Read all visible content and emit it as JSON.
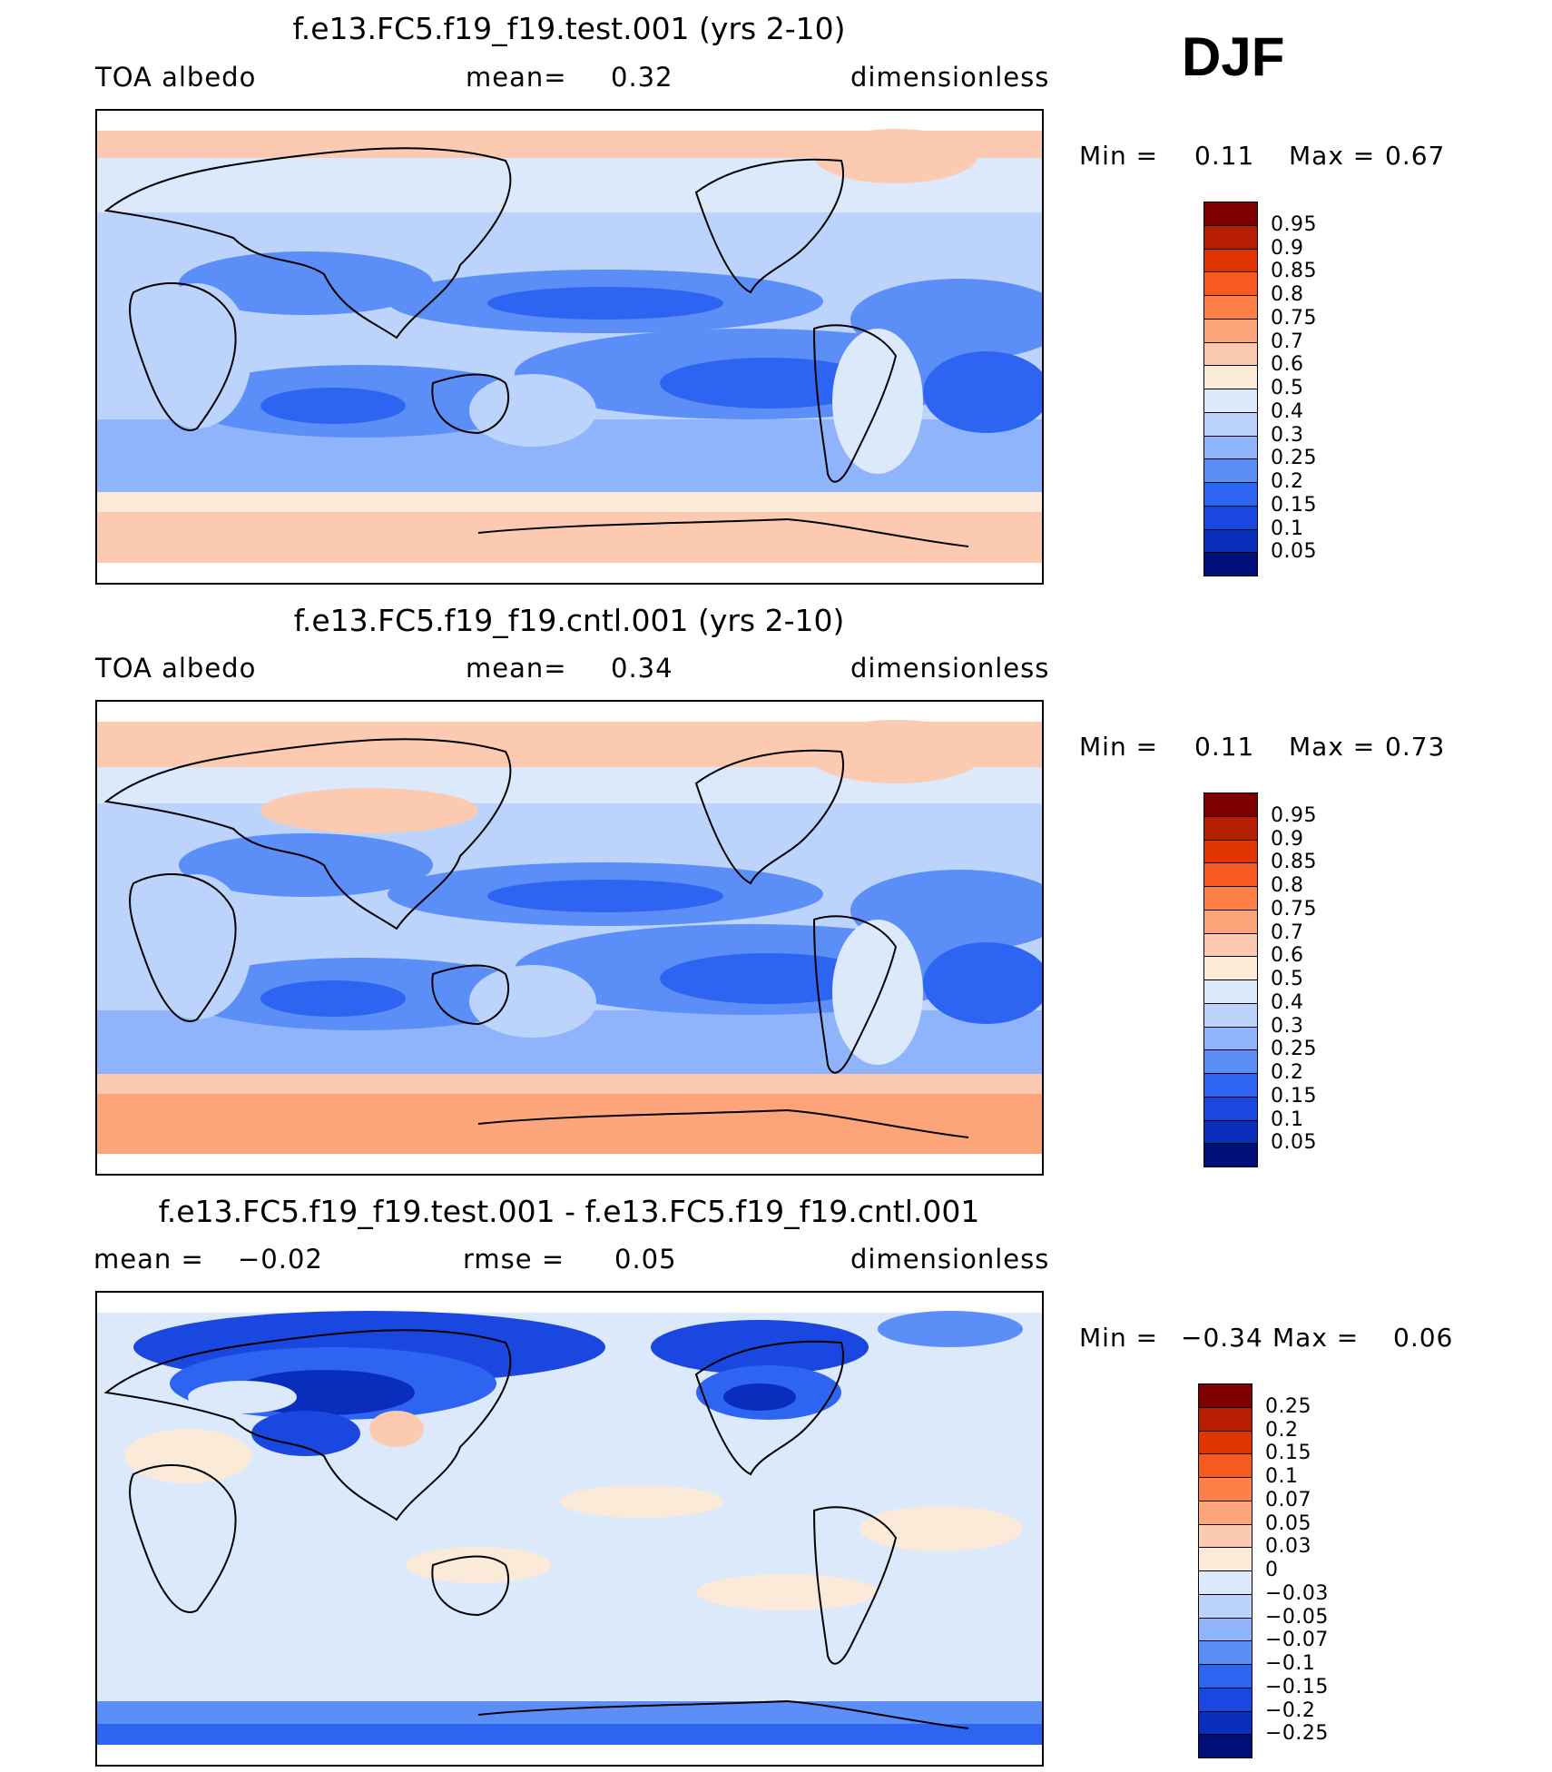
{
  "season": "DJF",
  "panels": [
    {
      "title": "f.e13.FC5.f19_f19.test.001 (yrs 2-10)",
      "left_label": "TOA albedo",
      "center_label": "mean=",
      "center_value": "0.32",
      "right_label": "dimensionless",
      "min_label": "Min =",
      "min_value": "0.11",
      "max_label": "Max =",
      "max_value": "0.67",
      "colorbar": {
        "labels": [
          "0.95",
          "0.9",
          "0.85",
          "0.8",
          "0.75",
          "0.7",
          "0.6",
          "0.5",
          "0.4",
          "0.3",
          "0.25",
          "0.2",
          "0.15",
          "0.1",
          "0.05"
        ],
        "colors": [
          "#7f0000",
          "#b51e00",
          "#e03500",
          "#f75a1e",
          "#fc8048",
          "#fca47a",
          "#fccab0",
          "#fcead8",
          "#dbe9fb",
          "#bcd3fb",
          "#8fb4fb",
          "#5c8ef8",
          "#2e64f2",
          "#1a47e0",
          "#0a2ebc",
          "#000f7a"
        ]
      }
    },
    {
      "title": "f.e13.FC5.f19_f19.cntl.001 (yrs 2-10)",
      "left_label": "TOA albedo",
      "center_label": "mean=",
      "center_value": "0.34",
      "right_label": "dimensionless",
      "min_label": "Min =",
      "min_value": "0.11",
      "max_label": "Max =",
      "max_value": "0.73",
      "colorbar": {
        "labels": [
          "0.95",
          "0.9",
          "0.85",
          "0.8",
          "0.75",
          "0.7",
          "0.6",
          "0.5",
          "0.4",
          "0.3",
          "0.25",
          "0.2",
          "0.15",
          "0.1",
          "0.05"
        ],
        "colors": [
          "#7f0000",
          "#b51e00",
          "#e03500",
          "#f75a1e",
          "#fc8048",
          "#fca47a",
          "#fccab0",
          "#fcead8",
          "#dbe9fb",
          "#bcd3fb",
          "#8fb4fb",
          "#5c8ef8",
          "#2e64f2",
          "#1a47e0",
          "#0a2ebc",
          "#000f7a"
        ]
      }
    },
    {
      "title": "f.e13.FC5.f19_f19.test.001 - f.e13.FC5.f19_f19.cntl.001",
      "left_label": "mean =",
      "left_value": "−0.02",
      "center_label": "rmse =",
      "center_value": "0.05",
      "right_label": "dimensionless",
      "min_label": "Min =",
      "min_value": "−0.34",
      "max_label": "Max =",
      "max_value": "0.06",
      "colorbar": {
        "labels": [
          "0.25",
          "0.2",
          "0.15",
          "0.1",
          "0.07",
          "0.05",
          "0.03",
          "0",
          "−0.03",
          "−0.05",
          "−0.07",
          "−0.1",
          "−0.15",
          "−0.2",
          "−0.25"
        ],
        "colors": [
          "#7f0000",
          "#b51e00",
          "#e03500",
          "#f75a1e",
          "#fc8048",
          "#fca47a",
          "#fccab0",
          "#fcead8",
          "#dbe9fb",
          "#bcd3fb",
          "#8fb4fb",
          "#5c8ef8",
          "#2e64f2",
          "#1a47e0",
          "#0a2ebc",
          "#000f7a"
        ]
      }
    }
  ]
}
